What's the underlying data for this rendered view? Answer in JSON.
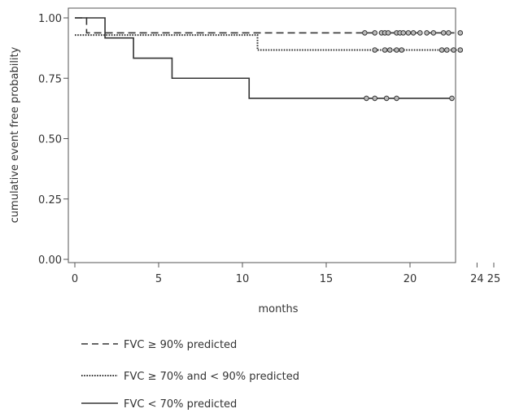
{
  "chart_data": {
    "type": "line",
    "subtype": "kaplan-meier step",
    "title": "",
    "xlabel": "months",
    "ylabel": "cumulative event free probability",
    "xlim": [
      0,
      25
    ],
    "ylim": [
      0,
      1
    ],
    "x_ticks": [
      "0",
      "5",
      "10",
      "15",
      "20",
      "24",
      "25"
    ],
    "x_tick_values": [
      0,
      5,
      10,
      15,
      20,
      24,
      25
    ],
    "y_ticks": [
      "0.00",
      "0.25",
      "0.50",
      "0.75",
      "1.00"
    ],
    "y_tick_values": [
      0,
      0.25,
      0.5,
      0.75,
      1.0
    ],
    "grid": false,
    "legend_position": "bottom",
    "series": [
      {
        "name": "FVC ≥ 90% predicted",
        "line_style": "dashed",
        "color": "#333333",
        "steps": [
          [
            0,
            1.0
          ],
          [
            0.7,
            0.938
          ],
          [
            23.0,
            0.938
          ]
        ],
        "censored": [
          [
            17.3,
            0.938
          ],
          [
            17.9,
            0.938
          ],
          [
            18.3,
            0.938
          ],
          [
            18.5,
            0.938
          ],
          [
            18.7,
            0.938
          ],
          [
            19.2,
            0.938
          ],
          [
            19.4,
            0.938
          ],
          [
            19.6,
            0.938
          ],
          [
            19.9,
            0.938
          ],
          [
            20.2,
            0.938
          ],
          [
            20.6,
            0.938
          ],
          [
            21.0,
            0.938
          ],
          [
            21.4,
            0.938
          ],
          [
            22.0,
            0.938
          ],
          [
            22.3,
            0.938
          ],
          [
            23.0,
            0.938
          ]
        ]
      },
      {
        "name": "FVC ≥ 70% and < 90% predicted",
        "line_style": "dotted",
        "color": "#333333",
        "steps": [
          [
            0,
            0.929
          ],
          [
            10.9,
            0.867
          ],
          [
            23.0,
            0.867
          ]
        ],
        "censored": [
          [
            17.9,
            0.867
          ],
          [
            18.5,
            0.867
          ],
          [
            18.8,
            0.867
          ],
          [
            19.2,
            0.867
          ],
          [
            19.5,
            0.867
          ],
          [
            21.9,
            0.867
          ],
          [
            22.2,
            0.867
          ],
          [
            22.6,
            0.867
          ],
          [
            23.0,
            0.867
          ]
        ]
      },
      {
        "name": "FVC < 70% predicted",
        "line_style": "solid",
        "color": "#333333",
        "steps": [
          [
            0,
            1.0
          ],
          [
            1.8,
            0.917
          ],
          [
            3.5,
            0.833
          ],
          [
            5.8,
            0.75
          ],
          [
            10.4,
            0.667
          ],
          [
            22.5,
            0.667
          ]
        ],
        "censored": [
          [
            17.4,
            0.667
          ],
          [
            17.9,
            0.667
          ],
          [
            18.6,
            0.667
          ],
          [
            19.2,
            0.667
          ],
          [
            22.5,
            0.667
          ]
        ]
      }
    ]
  }
}
